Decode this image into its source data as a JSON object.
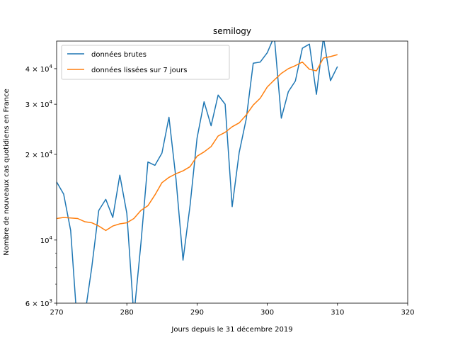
{
  "chart_data": {
    "type": "line",
    "title": "semilogy",
    "xlabel": "Jours depuis le 31 décembre 2019",
    "ylabel": "Nombre de nouveaux cas quotidiens en France",
    "yscale": "log",
    "xlim": [
      270,
      320
    ],
    "ylim": [
      6000,
      50000
    ],
    "xticks": [
      270,
      280,
      290,
      300,
      310,
      320
    ],
    "xtick_labels": [
      "270",
      "280",
      "290",
      "300",
      "310",
      "320"
    ],
    "yticks": [
      6000,
      10000,
      20000,
      30000,
      40000
    ],
    "ytick_labels": [
      {
        "mantissa": "6",
        "exp": "3"
      },
      {
        "mantissa": "",
        "exp": "4"
      },
      {
        "mantissa": "2",
        "exp": "4"
      },
      {
        "mantissa": "3",
        "exp": "4"
      },
      {
        "mantissa": "4",
        "exp": "4"
      }
    ],
    "legend_position": "top-left",
    "series": [
      {
        "name": "données brutes",
        "color": "#1f77b4",
        "x": [
          270,
          271,
          272,
          273,
          274,
          275,
          276,
          277,
          278,
          279,
          280,
          281,
          282,
          283,
          284,
          285,
          286,
          287,
          288,
          289,
          290,
          291,
          292,
          293,
          294,
          295,
          296,
          297,
          298,
          299,
          300,
          301,
          302,
          303,
          304,
          305,
          306,
          307,
          308,
          309,
          310
        ],
        "y": [
          16000,
          14500,
          10800,
          4800,
          5400,
          8000,
          12700,
          13900,
          12000,
          16900,
          12400,
          5400,
          9700,
          18800,
          18300,
          20200,
          27000,
          16400,
          8500,
          13200,
          22800,
          30600,
          25200,
          32300,
          30000,
          13100,
          20300,
          26600,
          41800,
          42200,
          45500,
          52000,
          26800,
          33200,
          36200,
          47200,
          48800,
          32500,
          51500,
          36300,
          40700
        ]
      },
      {
        "name": "données lissées sur 7 jours",
        "color": "#ff7f0e",
        "x": [
          270,
          271,
          272,
          273,
          274,
          275,
          276,
          277,
          278,
          279,
          280,
          281,
          282,
          283,
          284,
          285,
          286,
          287,
          288,
          289,
          290,
          291,
          292,
          293,
          294,
          295,
          296,
          297,
          298,
          299,
          300,
          301,
          302,
          303,
          304,
          305,
          306,
          307,
          308,
          309,
          310
        ],
        "y": [
          11900,
          12000,
          11950,
          11900,
          11600,
          11500,
          11200,
          10800,
          11200,
          11400,
          11500,
          11900,
          12700,
          13200,
          14400,
          15900,
          16600,
          17100,
          17500,
          18100,
          19700,
          20400,
          21300,
          23200,
          23900,
          25000,
          25800,
          27500,
          29800,
          31500,
          34500,
          36500,
          38500,
          40000,
          41000,
          42200,
          39800,
          39300,
          43600,
          44100,
          44800
        ]
      }
    ]
  }
}
